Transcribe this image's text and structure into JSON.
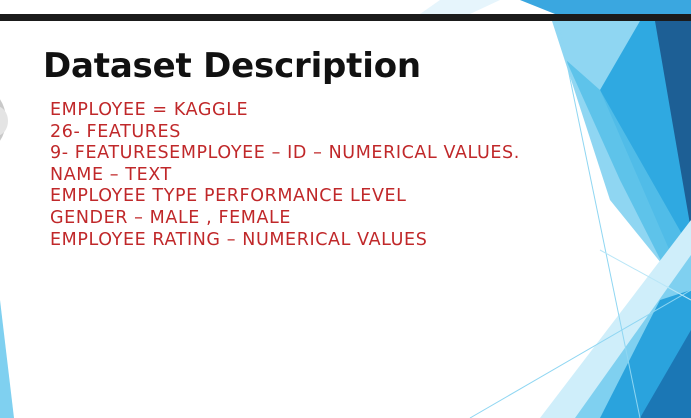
{
  "slide": {
    "title": "Dataset Description",
    "lines": [
      "EMPLOYEE = KAGGLE",
      "26- FEATURES",
      "9- FEATURESEMPLOYEE – ID – NUMERICAL VALUES.",
      "NAME – TEXT",
      "EMPLOYEE TYPE PERFORMANCE LEVEL",
      "GENDER – MALE , FEMALE",
      "EMPLOYEE RATING – NUMERICAL VALUES"
    ]
  },
  "colors": {
    "title": "#111111",
    "body_text": "#c0282a",
    "accent_light": "#5ec4ec",
    "accent_mid": "#2b9ad6",
    "accent_dark": "#1f6fa8",
    "top_bar": "#1b1b1b"
  }
}
